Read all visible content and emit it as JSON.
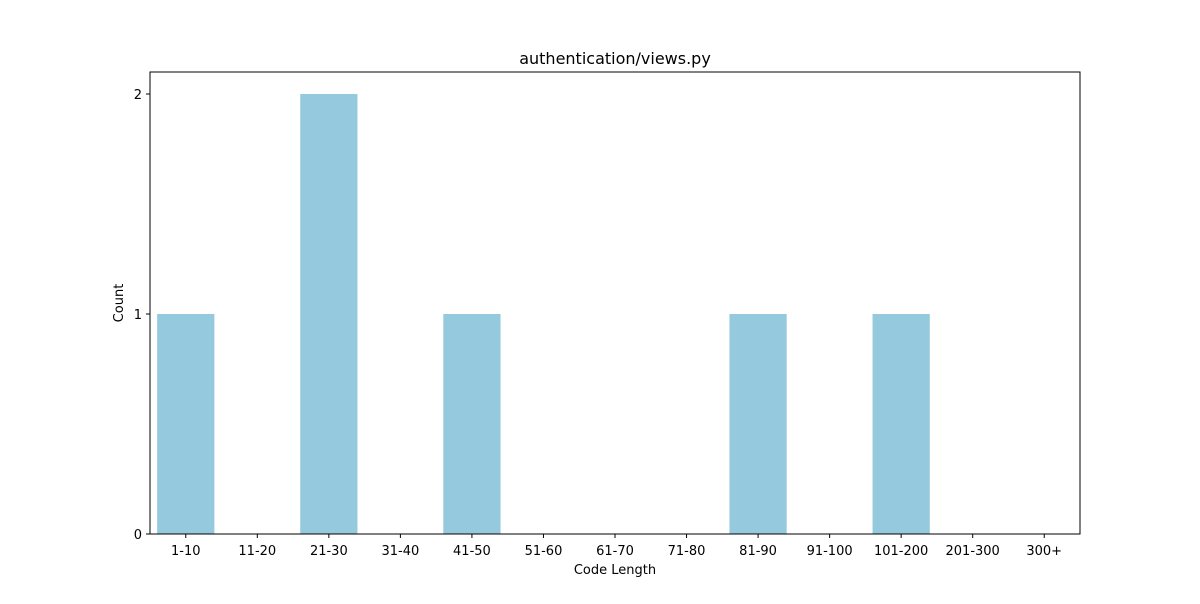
{
  "chart_data": {
    "type": "bar",
    "title": "authentication/views.py",
    "xlabel": "Code Length",
    "ylabel": "Count",
    "categories": [
      "1-10",
      "11-20",
      "21-30",
      "31-40",
      "41-50",
      "51-60",
      "61-70",
      "71-80",
      "81-90",
      "91-100",
      "101-200",
      "201-300",
      "300+"
    ],
    "values": [
      1,
      0,
      2,
      0,
      1,
      0,
      0,
      0,
      1,
      0,
      1,
      0,
      0
    ],
    "yticks": [
      0,
      1,
      2
    ],
    "ylim": [
      0,
      2.1
    ],
    "grid": false,
    "bar_color": "#95c9dd",
    "axis_color": "#000000"
  }
}
